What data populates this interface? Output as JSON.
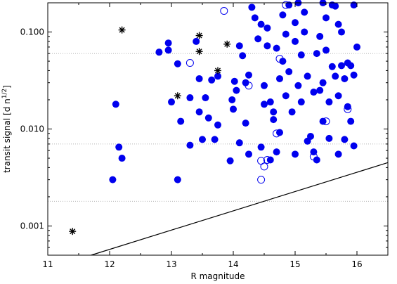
{
  "chart_data": {
    "type": "scatter",
    "title": "",
    "xlabel": "R magnitude",
    "ylabel": "transit signal [d n",
    "ylabel_sup": "1/2",
    "ylabel_end": "]",
    "xlim": [
      11,
      16.5
    ],
    "ylim": [
      0.0005,
      0.2
    ],
    "yscale": "log",
    "x_ticks": [
      11,
      12,
      13,
      14,
      15,
      16
    ],
    "x_tick_labels": [
      "11",
      "12",
      "13",
      "14",
      "15",
      "16"
    ],
    "y_ticks": [
      0.001,
      0.01,
      0.1
    ],
    "y_tick_labels": [
      "0.001",
      "0.010",
      "0.100"
    ],
    "reference_lines_y": [
      0.06,
      0.007,
      0.0018
    ],
    "threshold_line": [
      [
        11.7,
        0.0005
      ],
      [
        16.5,
        0.0045
      ]
    ],
    "colors": {
      "filled": "#0000ee",
      "open": "#0000ee",
      "star": "#000000",
      "line": "#000000",
      "ref": "#999999"
    },
    "series": [
      {
        "marker": "filled-circle",
        "points": [
          [
            12.05,
            0.003
          ],
          [
            12.1,
            0.018
          ],
          [
            12.15,
            0.0065
          ],
          [
            12.2,
            0.005
          ],
          [
            12.8,
            0.062
          ],
          [
            12.95,
            0.065
          ],
          [
            12.95,
            0.077
          ],
          [
            13.0,
            0.019
          ],
          [
            13.1,
            0.047
          ],
          [
            13.1,
            0.003
          ],
          [
            13.15,
            0.012
          ],
          [
            13.3,
            0.0068
          ],
          [
            13.3,
            0.021
          ],
          [
            13.4,
            0.08
          ],
          [
            13.45,
            0.033
          ],
          [
            13.45,
            0.015
          ],
          [
            13.5,
            0.0078
          ],
          [
            13.55,
            0.021
          ],
          [
            13.6,
            0.013
          ],
          [
            13.65,
            0.032
          ],
          [
            13.7,
            0.0078
          ],
          [
            13.75,
            0.035
          ],
          [
            13.75,
            0.011
          ],
          [
            13.95,
            0.0047
          ],
          [
            13.98,
            0.02
          ],
          [
            14.0,
            0.016
          ],
          [
            14.02,
            0.031
          ],
          [
            14.05,
            0.025
          ],
          [
            14.1,
            0.072
          ],
          [
            14.1,
            0.0072
          ],
          [
            14.15,
            0.057
          ],
          [
            14.2,
            0.03
          ],
          [
            14.2,
            0.0115
          ],
          [
            14.25,
            0.036
          ],
          [
            14.25,
            0.0055
          ],
          [
            14.3,
            0.18
          ],
          [
            14.35,
            0.14
          ],
          [
            14.4,
            0.085
          ],
          [
            14.45,
            0.12
          ],
          [
            14.45,
            0.0065
          ],
          [
            14.5,
            0.018
          ],
          [
            14.5,
            0.028
          ],
          [
            14.55,
            0.11
          ],
          [
            14.55,
            0.072
          ],
          [
            14.6,
            0.0048
          ],
          [
            14.6,
            0.019
          ],
          [
            14.65,
            0.015
          ],
          [
            14.65,
            0.0125
          ],
          [
            14.7,
            0.068
          ],
          [
            14.7,
            0.0058
          ],
          [
            14.75,
            0.033
          ],
          [
            14.75,
            0.0092
          ],
          [
            14.8,
            0.15
          ],
          [
            14.8,
            0.05
          ],
          [
            14.85,
            0.095
          ],
          [
            14.85,
            0.022
          ],
          [
            14.9,
            0.19
          ],
          [
            14.9,
            0.039
          ],
          [
            14.95,
            0.015
          ],
          [
            15.0,
            0.125
          ],
          [
            15.0,
            0.08
          ],
          [
            15.0,
            0.0055
          ],
          [
            15.05,
            0.2
          ],
          [
            15.05,
            0.028
          ],
          [
            15.1,
            0.058
          ],
          [
            15.1,
            0.019
          ],
          [
            15.15,
            0.16
          ],
          [
            15.15,
            0.1
          ],
          [
            15.2,
            0.035
          ],
          [
            15.2,
            0.0075
          ],
          [
            15.25,
            0.0084
          ],
          [
            15.3,
            0.024
          ],
          [
            15.3,
            0.0058
          ],
          [
            15.35,
            0.06
          ],
          [
            15.35,
            0.0048
          ],
          [
            15.4,
            0.09
          ],
          [
            15.4,
            0.025
          ],
          [
            15.45,
            0.2
          ],
          [
            15.45,
            0.03
          ],
          [
            15.45,
            0.012
          ],
          [
            15.5,
            0.065
          ],
          [
            15.5,
            0.14
          ],
          [
            15.55,
            0.019
          ],
          [
            15.55,
            0.008
          ],
          [
            15.6,
            0.19
          ],
          [
            15.6,
            0.044
          ],
          [
            15.65,
            0.185
          ],
          [
            15.65,
            0.035
          ],
          [
            15.7,
            0.12
          ],
          [
            15.7,
            0.022
          ],
          [
            15.7,
            0.0055
          ],
          [
            15.75,
            0.1
          ],
          [
            15.75,
            0.045
          ],
          [
            15.8,
            0.033
          ],
          [
            15.8,
            0.0078
          ],
          [
            15.85,
            0.048
          ],
          [
            15.85,
            0.017
          ],
          [
            15.9,
            0.045
          ],
          [
            15.9,
            0.012
          ],
          [
            15.95,
            0.19
          ],
          [
            15.95,
            0.036
          ],
          [
            15.95,
            0.0067
          ],
          [
            16.0,
            0.07
          ]
        ]
      },
      {
        "marker": "open-circle",
        "points": [
          [
            13.3,
            0.048
          ],
          [
            13.85,
            0.165
          ],
          [
            14.25,
            0.028
          ],
          [
            14.45,
            0.0047
          ],
          [
            14.45,
            0.003
          ],
          [
            14.5,
            0.0041
          ],
          [
            14.55,
            0.0048
          ],
          [
            14.7,
            0.009
          ],
          [
            14.75,
            0.053
          ],
          [
            14.85,
            0.19
          ],
          [
            15.3,
            0.0052
          ],
          [
            15.5,
            0.012
          ],
          [
            15.85,
            0.016
          ]
        ]
      },
      {
        "marker": "star",
        "points": [
          [
            11.4,
            0.00088
          ],
          [
            12.2,
            0.105
          ],
          [
            13.1,
            0.022
          ],
          [
            13.45,
            0.092
          ],
          [
            13.45,
            0.063
          ],
          [
            13.75,
            0.04
          ],
          [
            13.9,
            0.075
          ]
        ]
      }
    ]
  }
}
